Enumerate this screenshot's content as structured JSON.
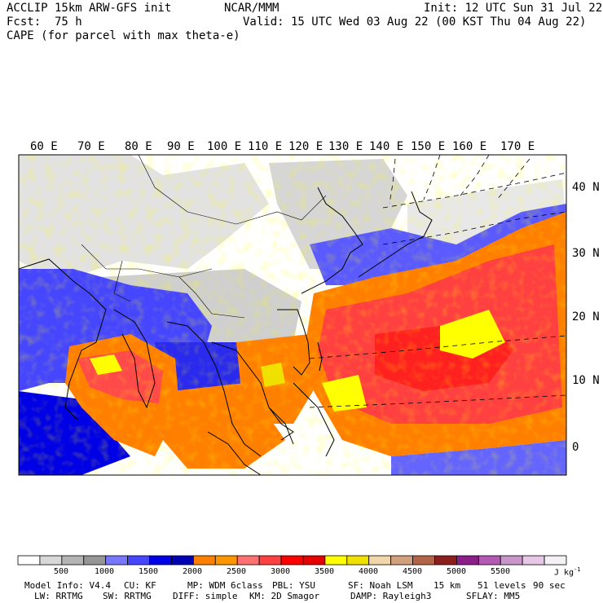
{
  "header": {
    "model": "ACCLIP 15km ARW-GFS init",
    "org": "NCAR/MMM",
    "init": "Init: 12 UTC Sun 31 Jul 22",
    "fcst": "Fcst:  75 h",
    "valid": "Valid: 15 UTC Wed 03 Aug 22 (00 KST Thu 04 Aug 22)",
    "field": "CAPE (for parcel with max theta-e)"
  },
  "lon_labels": [
    "60 E",
    "70 E",
    "80 E",
    "90 E",
    "100 E",
    "110 E",
    "120 E",
    "130 E",
    "140 E",
    "150 E",
    "160 E",
    "170 E"
  ],
  "lat_labels": [
    "40 N",
    "30 N",
    "20 N",
    "10 N",
    "0"
  ],
  "colorbar": {
    "colors": [
      "#ffffff",
      "#d8d8d8",
      "#b4b4b4",
      "#969696",
      "#7878ff",
      "#4646ff",
      "#0000e6",
      "#0000b4",
      "#ff7f00",
      "#ff9600",
      "#ff7070",
      "#ff4040",
      "#ff0000",
      "#e60000",
      "#ffff00",
      "#f0e000",
      "#f0d6aa",
      "#d2a07c",
      "#b46446",
      "#8c1e1e",
      "#8c1e8c",
      "#b45ab4",
      "#c896c8",
      "#e6c8e6",
      "#f5f0f5"
    ],
    "ticks": [
      "500",
      "1000",
      "1500",
      "2000",
      "2500",
      "3000",
      "3500",
      "4000",
      "4500",
      "5000",
      "5500"
    ],
    "units": "J kg",
    "units_exp": "-1"
  },
  "footer": {
    "line1": [
      "Model Info: V4.4",
      "CU: KF",
      "MP: WDM 6class",
      "PBL: YSU",
      "SF: Noah LSM",
      "15 km",
      "51 levels",
      "90 sec"
    ],
    "line2": [
      "LW: RRTMG",
      "SW: RRTMG",
      "DIFF: simple",
      "KM: 2D Smagor",
      "DAMP: Rayleigh3",
      "SFLAY: MM5"
    ]
  },
  "colors": {
    "land_gray": "#d0d0d0",
    "blue": "#3c3cff",
    "orange": "#ff7f00",
    "red": "#ff3030",
    "yellow": "#ffff00"
  }
}
